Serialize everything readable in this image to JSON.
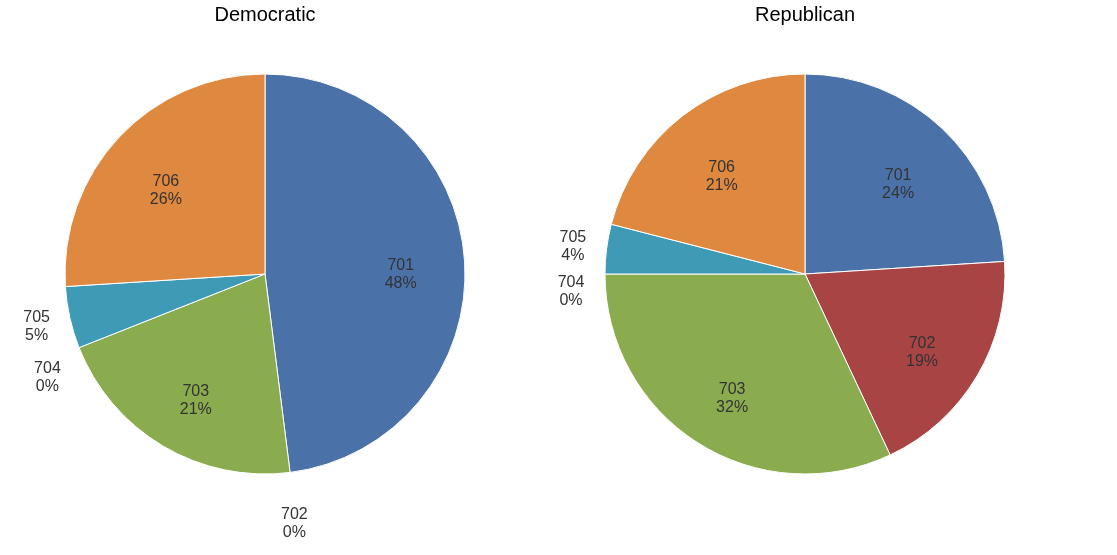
{
  "chart_data": [
    {
      "type": "pie",
      "title": "Democratic",
      "categories": [
        "701",
        "702",
        "703",
        "704",
        "705",
        "706"
      ],
      "values": [
        48,
        0,
        21,
        0,
        5,
        26
      ],
      "value_labels": [
        "48%",
        "0%",
        "21%",
        "0%",
        "5%",
        "26%"
      ],
      "colors": [
        "#4a72a8",
        "#a84444",
        "#8aab4e",
        "#7b5ea7",
        "#3f9ab5",
        "#de8840"
      ],
      "legend": false
    },
    {
      "type": "pie",
      "title": "Republican",
      "categories": [
        "701",
        "702",
        "703",
        "704",
        "705",
        "706"
      ],
      "values": [
        24,
        19,
        32,
        0,
        4,
        21
      ],
      "value_labels": [
        "24%",
        "19%",
        "32%",
        "0%",
        "4%",
        "21%"
      ],
      "colors": [
        "#4a72a8",
        "#a84444",
        "#8aab4e",
        "#7b5ea7",
        "#3f9ab5",
        "#de8840"
      ],
      "legend": false
    }
  ]
}
